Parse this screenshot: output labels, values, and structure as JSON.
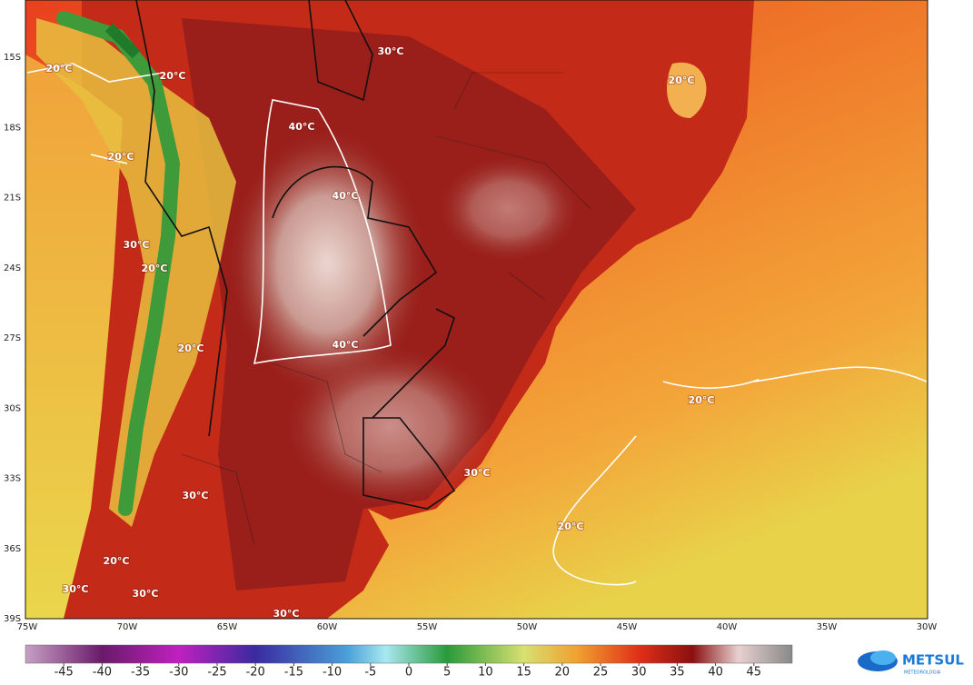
{
  "map": {
    "lat_labels": [
      "15S",
      "18S",
      "21S",
      "24S",
      "27S",
      "30S",
      "33S",
      "36S",
      "39S"
    ],
    "lon_labels": [
      "75W",
      "70W",
      "65W",
      "60W",
      "55W",
      "50W",
      "45W",
      "40W",
      "35W",
      "30W"
    ],
    "contour_labels": [
      "30°C",
      "20°C",
      "20°C",
      "20°C",
      "40°C",
      "20°C",
      "40°C",
      "30°C",
      "20°C",
      "40°C",
      "20°C",
      "20°C",
      "30°C",
      "30°C",
      "20°C",
      "20°C",
      "30°C",
      "30°C",
      "30°C"
    ],
    "colorbar": {
      "lim": [
        -50,
        50
      ],
      "ticks": [
        -45,
        -40,
        -35,
        -30,
        -25,
        -20,
        -15,
        -10,
        -5,
        0,
        5,
        10,
        15,
        20,
        25,
        30,
        35,
        40,
        45
      ]
    },
    "logo": {
      "name": "METSUL",
      "tagline": "METEOROLOGIA"
    }
  }
}
